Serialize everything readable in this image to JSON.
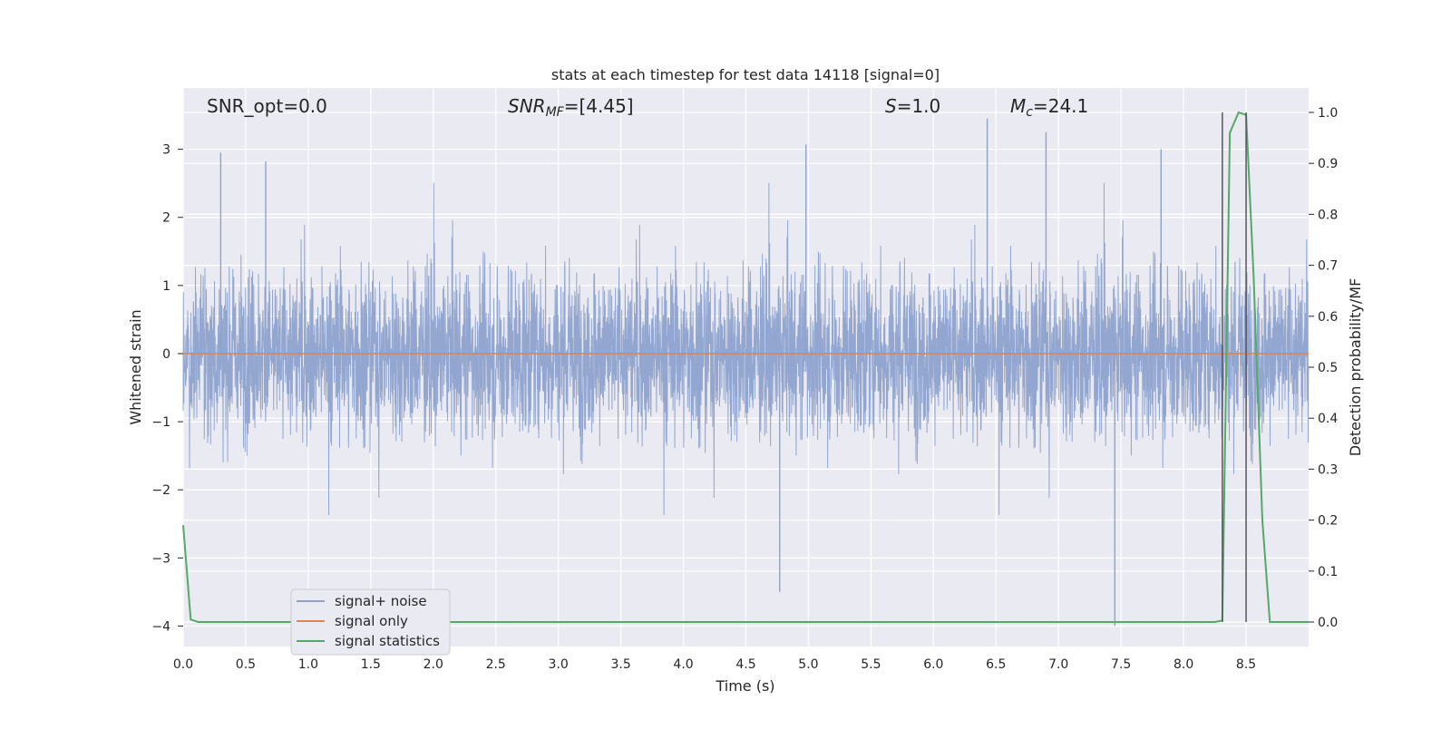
{
  "chart_data": {
    "type": "line",
    "title": "stats at each timestep for test data 14118 [signal=0]",
    "xlabel": "Time (s)",
    "ylabel": "Whitened strain",
    "y2label": "Detection probability/MF",
    "xlim": [
      0.0,
      9.0
    ],
    "ylim": [
      -4.3,
      3.9
    ],
    "y2lim": [
      -0.048,
      1.048
    ],
    "x_ticks": [
      "0.0",
      "0.5",
      "1.0",
      "1.5",
      "2.0",
      "2.5",
      "3.0",
      "3.5",
      "4.0",
      "4.5",
      "5.0",
      "5.5",
      "6.0",
      "6.5",
      "7.0",
      "7.5",
      "8.0",
      "8.5"
    ],
    "y_ticks": [
      "3",
      "2",
      "1",
      "0",
      "−1",
      "−2",
      "−3",
      "−4"
    ],
    "y2_ticks": [
      "1.0",
      "0.9",
      "0.8",
      "0.7",
      "0.6",
      "0.5",
      "0.4",
      "0.3",
      "0.2",
      "0.1",
      "0.0"
    ],
    "grid": true,
    "annotations": [
      {
        "id": "snr-opt",
        "text": "SNR_opt=0.0",
        "x": 0.2
      },
      {
        "id": "snr-mf",
        "text": "SNR_MF=[4.45]",
        "x": 2.6
      },
      {
        "id": "s-stat",
        "text": "S=1.0",
        "x": 5.6
      },
      {
        "id": "mchirp",
        "text": "M_c=24.1",
        "x": 6.6
      }
    ],
    "legend": {
      "position": "lower-left",
      "entries": [
        {
          "label": "signal+ noise",
          "color": "#8ea2cc"
        },
        {
          "label": "signal only",
          "color": "#dd8452"
        },
        {
          "label": "signal statistics",
          "color": "#55a868"
        }
      ]
    },
    "series": [
      {
        "name": "signal+ noise",
        "axis": "left",
        "color": "#8ea2cc",
        "sample_rate_hz": 2048,
        "envelope_note": "dense whitened noise, typical band about -1.2 to 1.2, spikes up to about 3.0 and down to -4.0",
        "notable_peaks": [
          {
            "x": 0.3,
            "y": 2.95
          },
          {
            "x": 0.66,
            "y": 2.82
          },
          {
            "x": 4.98,
            "y": 3.07
          },
          {
            "x": 6.43,
            "y": 3.45
          },
          {
            "x": 6.9,
            "y": 3.25
          },
          {
            "x": 7.82,
            "y": 3.0
          },
          {
            "x": 4.77,
            "y": -3.5
          },
          {
            "x": 7.45,
            "y": -4.0
          }
        ]
      },
      {
        "name": "signal only",
        "axis": "left",
        "color": "#dd8452",
        "x": [
          0.0,
          9.0
        ],
        "y": [
          0.0,
          0.0
        ]
      },
      {
        "name": "signal statistics",
        "axis": "right",
        "color": "#55a868",
        "x": [
          0.0,
          0.06,
          0.12,
          8.25,
          8.31,
          8.37,
          8.44,
          8.5,
          8.56,
          8.63,
          8.69,
          8.76,
          8.81,
          8.88,
          9.0
        ],
        "y": [
          0.19,
          0.005,
          0.0,
          0.0,
          0.003,
          0.96,
          1.0,
          0.995,
          0.68,
          0.2,
          0.0,
          0.0,
          0.0,
          0.0,
          0.0
        ]
      }
    ],
    "vertical_markers": [
      {
        "x": 8.31,
        "y_top": 1.0,
        "y_bottom": 0.0,
        "color": "#55555a"
      },
      {
        "x": 8.5,
        "y_top": 1.0,
        "y_bottom": 0.0,
        "color": "#55555a"
      }
    ]
  }
}
